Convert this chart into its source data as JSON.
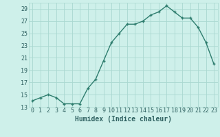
{
  "x": [
    0,
    1,
    2,
    3,
    4,
    5,
    6,
    7,
    8,
    9,
    10,
    11,
    12,
    13,
    14,
    15,
    16,
    17,
    18,
    19,
    20,
    21,
    22,
    23
  ],
  "y": [
    14,
    14.5,
    15,
    14.5,
    13.5,
    13.5,
    13.5,
    16,
    17.5,
    20.5,
    23.5,
    25,
    26.5,
    26.5,
    27,
    28,
    28.5,
    29.5,
    28.5,
    27.5,
    27.5,
    26,
    23.5,
    20
  ],
  "line_color": "#2e7d6e",
  "marker": "+",
  "bg_color": "#cef0ea",
  "grid_color": "#aad8d0",
  "xlabel": "Humidex (Indice chaleur)",
  "ylim": [
    13,
    30
  ],
  "xlim": [
    -0.5,
    23.5
  ],
  "yticks": [
    13,
    15,
    17,
    19,
    21,
    23,
    25,
    27,
    29
  ],
  "xticks": [
    0,
    1,
    2,
    3,
    4,
    5,
    6,
    7,
    8,
    9,
    10,
    11,
    12,
    13,
    14,
    15,
    16,
    17,
    18,
    19,
    20,
    21,
    22,
    23
  ],
  "xtick_labels": [
    "0",
    "1",
    "2",
    "3",
    "4",
    "5",
    "6",
    "7",
    "8",
    "9",
    "10",
    "11",
    "12",
    "13",
    "14",
    "15",
    "16",
    "17",
    "18",
    "19",
    "20",
    "21",
    "22",
    "23"
  ],
  "text_color": "#2e6060",
  "tick_fontsize": 6.0,
  "xlabel_fontsize": 7.0,
  "line_width": 1.0,
  "marker_size": 3.5,
  "marker_edge_width": 1.0
}
